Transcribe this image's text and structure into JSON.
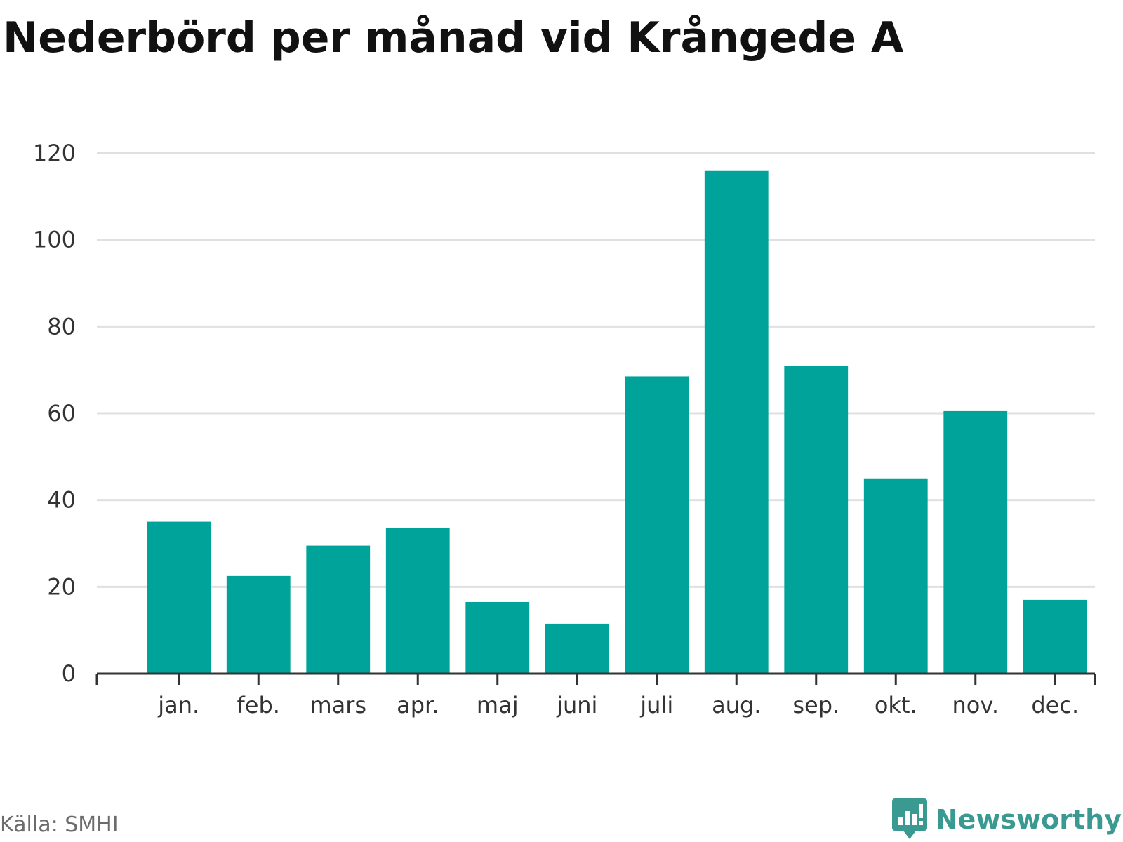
{
  "header": {
    "title": "Nederbörd per månad vid Krångede A"
  },
  "chart_data": {
    "type": "bar",
    "title": "Nederbörd per månad vid Krångede A",
    "xlabel": "",
    "ylabel": "",
    "categories": [
      "jan.",
      "feb.",
      "mars",
      "apr.",
      "maj",
      "juni",
      "juli",
      "aug.",
      "sep.",
      "okt.",
      "nov.",
      "dec."
    ],
    "values": [
      35,
      22.5,
      29.5,
      33.5,
      16.5,
      11.5,
      68.5,
      116,
      71,
      45,
      60.5,
      17
    ],
    "ylim": [
      0,
      120
    ],
    "yticks": [
      "0",
      "20",
      "40",
      "60",
      "80",
      "100",
      "120"
    ],
    "grid": true,
    "legend": "none",
    "bar_color": "#00a39a",
    "grid_color": "#e0e0e0",
    "axis_color": "#333333"
  },
  "footer": {
    "source": "Källa: SMHI",
    "brand": "Newsworthy",
    "brand_color": "#3a9a91",
    "brand_icon": "newsworthy-logo-icon"
  }
}
